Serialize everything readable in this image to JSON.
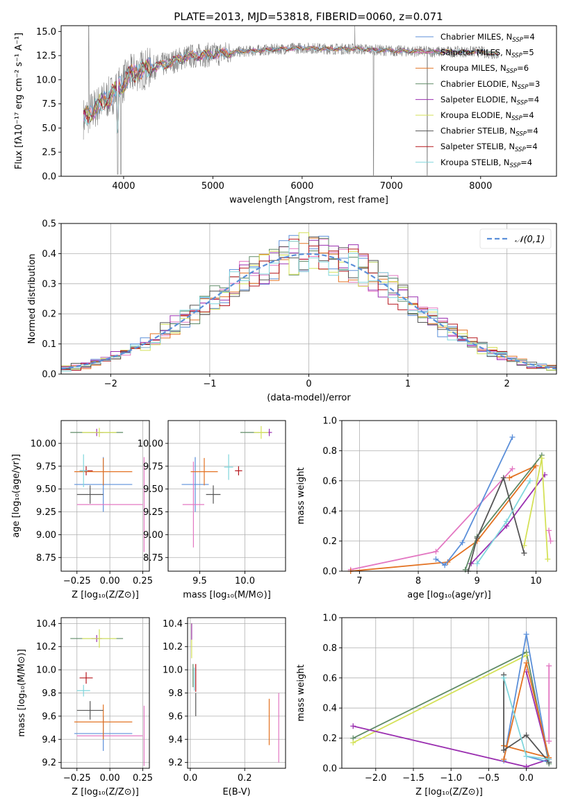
{
  "title": "PLATE=2013, MJD=53818, FIBERID=0060, z=0.071",
  "legend": [
    {
      "label": "Chabrier MILES, N",
      "sub": "SSP",
      "suffix": "=4",
      "color": "#5b8fd9"
    },
    {
      "label": "Salpeter MILES, N",
      "sub": "SSP",
      "suffix": "=5",
      "color": "#e377c2"
    },
    {
      "label": "Kroupa MILES, N",
      "sub": "SSP",
      "suffix": "=6",
      "color": "#e37222"
    },
    {
      "label": "Chabrier ELODIE, N",
      "sub": "SSP",
      "suffix": "=3",
      "color": "#5e8a66"
    },
    {
      "label": "Salpeter ELODIE, N",
      "sub": "SSP",
      "suffix": "=4",
      "color": "#9a2fb0"
    },
    {
      "label": "Kroupa ELODIE, N",
      "sub": "SSP",
      "suffix": "=4",
      "color": "#d4e157"
    },
    {
      "label": "Chabrier STELIB, N",
      "sub": "SSP",
      "suffix": "=4",
      "color": "#555555"
    },
    {
      "label": "Salpeter STELIB, N",
      "sub": "SSP",
      "suffix": "=4",
      "color": "#b5161c"
    },
    {
      "label": "Kroupa STELIB, N",
      "sub": "SSP",
      "suffix": "=4",
      "color": "#7fd6dc"
    }
  ],
  "chart_data": [
    {
      "id": "spectrum",
      "type": "line",
      "xlabel": "wavelength [Angstrom, rest frame]",
      "ylabel": "Flux [fλ10⁻¹⁷ erg cm⁻² s⁻¹ A⁻¹]",
      "xlim": [
        3300,
        8850
      ],
      "ylim": [
        0,
        15.6
      ],
      "xticks": [
        4000,
        5000,
        6000,
        7000,
        8000
      ],
      "yticks": [
        0.0,
        2.5,
        5.0,
        7.5,
        10.0,
        12.5,
        15.0
      ],
      "data_color": "#808080",
      "continuum": {
        "x": [
          3550,
          3700,
          3850,
          3950,
          4050,
          4150,
          4300,
          4500,
          4700,
          5000,
          5300,
          5600,
          6000,
          6300,
          6600,
          7000,
          7500,
          8000,
          8200
        ],
        "y": [
          6.0,
          7.2,
          8.3,
          9.2,
          10.3,
          10.9,
          11.2,
          11.7,
          12.4,
          12.6,
          12.9,
          13.1,
          13.3,
          13.2,
          13.2,
          13.0,
          12.9,
          12.9,
          12.6
        ]
      }
    },
    {
      "id": "residuals",
      "type": "histogram",
      "xlabel": "(data-model)/error",
      "ylabel": "Normed distribution",
      "xlim": [
        -2.5,
        2.5
      ],
      "ylim": [
        0,
        0.5
      ],
      "xticks": [
        -2,
        -1,
        0,
        1,
        2
      ],
      "yticks": [
        0.0,
        0.1,
        0.2,
        0.3,
        0.4,
        0.5
      ],
      "reference": {
        "label": "𝒩(0,1)",
        "mean": 0,
        "sigma": 1,
        "color": "#5b8fd9"
      }
    },
    {
      "id": "age_vs_Z",
      "type": "errorbar",
      "xlabel": "Z [log₁₀(Z/Z⊙)]",
      "ylabel": "age  [log₁₀(age/yr)]",
      "xlim": [
        -0.37,
        0.3
      ],
      "ylim": [
        8.6,
        10.25
      ],
      "xticks": [
        -0.25,
        0.0,
        0.25
      ],
      "yticks": [
        8.75,
        9.0,
        9.25,
        9.5,
        9.75,
        10.0
      ],
      "points": [
        {
          "x": -0.05,
          "xerr": 0.22,
          "y": 9.55,
          "yerr": 0.3,
          "color": "#5b8fd9"
        },
        {
          "x": 0.0,
          "xerr": 0.25,
          "y": 9.33,
          "yerr": 0.0,
          "color": "#e377c2"
        },
        {
          "x": -0.05,
          "xerr": 0.22,
          "y": 9.69,
          "yerr": 0.15,
          "color": "#e37222"
        },
        {
          "x": -0.1,
          "xerr": 0.2,
          "y": 10.12,
          "yerr": 0.0,
          "color": "#5e8a66"
        },
        {
          "x": -0.1,
          "xerr": 0.05,
          "y": 10.12,
          "yerr": 0.04,
          "color": "#9a2fb0"
        },
        {
          "x": -0.08,
          "xerr": 0.13,
          "y": 10.12,
          "yerr": 0.05,
          "color": "#d4e157"
        },
        {
          "x": -0.15,
          "xerr": 0.1,
          "y": 9.44,
          "yerr": 0.1,
          "color": "#555555"
        },
        {
          "x": -0.18,
          "xerr": 0.05,
          "y": 9.7,
          "yerr": 0.05,
          "color": "#b5161c"
        },
        {
          "x": -0.2,
          "xerr": 0.03,
          "y": 9.7,
          "yerr": 0.18,
          "color": "#7fd6dc"
        },
        {
          "x": 0.26,
          "xerr": 0.0,
          "y": 9.33,
          "yerr": 0.52,
          "color": "#e377c2"
        }
      ]
    },
    {
      "id": "age_vs_mass",
      "type": "errorbar",
      "xlabel": "mass [log₁₀(M/M⊙)]",
      "ylabel": "",
      "xlim": [
        9.15,
        10.45
      ],
      "ylim": [
        8.6,
        10.25
      ],
      "xticks": [
        9.5,
        10.0
      ],
      "yticks": [
        8.75,
        9.0,
        9.25,
        9.5,
        9.75,
        10.0
      ],
      "points": [
        {
          "x": 9.45,
          "xerr": 0.15,
          "y": 9.55,
          "yerr": 0.3,
          "color": "#5b8fd9"
        },
        {
          "x": 9.43,
          "xerr": 0.12,
          "y": 9.33,
          "yerr": 0.47,
          "color": "#e377c2"
        },
        {
          "x": 9.55,
          "xerr": 0.15,
          "y": 9.69,
          "yerr": 0.15,
          "color": "#e37222"
        },
        {
          "x": 10.1,
          "xerr": 0.15,
          "y": 10.12,
          "yerr": 0.0,
          "color": "#5e8a66"
        },
        {
          "x": 10.27,
          "xerr": 0.03,
          "y": 10.12,
          "yerr": 0.04,
          "color": "#9a2fb0"
        },
        {
          "x": 10.18,
          "xerr": 0.08,
          "y": 10.12,
          "yerr": 0.07,
          "color": "#d4e157"
        },
        {
          "x": 9.65,
          "xerr": 0.08,
          "y": 9.44,
          "yerr": 0.1,
          "color": "#555555"
        },
        {
          "x": 9.93,
          "xerr": 0.04,
          "y": 9.7,
          "yerr": 0.05,
          "color": "#b5161c"
        },
        {
          "x": 9.82,
          "xerr": 0.05,
          "y": 9.74,
          "yerr": 0.14,
          "color": "#7fd6dc"
        }
      ]
    },
    {
      "id": "weight_vs_age",
      "type": "line",
      "xlabel": "age  [log₁₀(age/yr)]",
      "ylabel": "mass weight",
      "xlim": [
        6.7,
        10.35
      ],
      "ylim": [
        0,
        1
      ],
      "xticks": [
        7,
        8,
        9,
        10
      ],
      "yticks": [
        0.0,
        0.2,
        0.4,
        0.6,
        0.8,
        1.0
      ],
      "series": [
        {
          "color": "#e377c2",
          "x": [
            6.85,
            8.3,
            9.6
          ],
          "y": [
            0.01,
            0.13,
            0.68
          ]
        },
        {
          "color": "#e37222",
          "x": [
            6.85,
            8.5,
            9.0,
            10.0,
            9.55
          ],
          "y": [
            0.0,
            0.06,
            0.2,
            0.7,
            0.62
          ]
        },
        {
          "color": "#5b8fd9",
          "x": [
            8.3,
            8.45,
            8.75,
            9.6
          ],
          "y": [
            0.08,
            0.04,
            0.19,
            0.89
          ]
        },
        {
          "color": "#5e8a66",
          "x": [
            8.8,
            9.0,
            10.1
          ],
          "y": [
            0.01,
            0.23,
            0.77
          ]
        },
        {
          "color": "#9a2fb0",
          "x": [
            8.9,
            9.5,
            10.15
          ],
          "y": [
            0.05,
            0.3,
            0.64
          ]
        },
        {
          "color": "#d4e157",
          "x": [
            9.8,
            10.1,
            10.2
          ],
          "y": [
            0.17,
            0.75,
            0.08
          ]
        },
        {
          "color": "#555555",
          "x": [
            8.85,
            9.0,
            9.45,
            9.8
          ],
          "y": [
            0.0,
            0.22,
            0.62,
            0.12
          ]
        },
        {
          "color": "#7fd6dc",
          "x": [
            9.0,
            9.5,
            9.9
          ],
          "y": [
            0.05,
            0.33,
            0.6
          ]
        },
        {
          "color": "#e377c2",
          "x": [
            10.22,
            10.25
          ],
          "y": [
            0.27,
            0.2
          ]
        }
      ]
    },
    {
      "id": "mass_vs_Z",
      "type": "errorbar",
      "xlabel": "Z [log₁₀(Z/Z⊙)]",
      "ylabel": "mass [log₁₀(M/M⊙)]",
      "xlim": [
        -0.37,
        0.3
      ],
      "ylim": [
        9.15,
        10.45
      ],
      "xticks": [
        -0.25,
        0.0,
        0.25
      ],
      "yticks": [
        9.2,
        9.4,
        9.6,
        9.8,
        10.0,
        10.2,
        10.4
      ],
      "points": [
        {
          "x": -0.05,
          "xerr": 0.22,
          "y": 9.45,
          "yerr": 0.15,
          "color": "#5b8fd9"
        },
        {
          "x": 0.0,
          "xerr": 0.25,
          "y": 9.43,
          "yerr": 0.0,
          "color": "#e377c2"
        },
        {
          "x": -0.05,
          "xerr": 0.22,
          "y": 9.55,
          "yerr": 0.15,
          "color": "#e37222"
        },
        {
          "x": -0.1,
          "xerr": 0.2,
          "y": 10.27,
          "yerr": 0.0,
          "color": "#5e8a66"
        },
        {
          "x": -0.1,
          "xerr": 0.04,
          "y": 10.27,
          "yerr": 0.03,
          "color": "#9a2fb0"
        },
        {
          "x": -0.08,
          "xerr": 0.13,
          "y": 10.27,
          "yerr": 0.08,
          "color": "#d4e157"
        },
        {
          "x": -0.15,
          "xerr": 0.1,
          "y": 9.65,
          "yerr": 0.08,
          "color": "#555555"
        },
        {
          "x": -0.18,
          "xerr": 0.05,
          "y": 9.93,
          "yerr": 0.05,
          "color": "#b5161c"
        },
        {
          "x": -0.2,
          "xerr": 0.05,
          "y": 9.82,
          "yerr": 0.05,
          "color": "#7fd6dc"
        },
        {
          "x": 0.26,
          "xerr": 0.0,
          "y": 9.43,
          "yerr": 0.26,
          "color": "#e377c2"
        }
      ]
    },
    {
      "id": "mass_vs_EBV",
      "type": "errorbar",
      "xlabel": "E(B-V)",
      "ylabel": "",
      "xlim": [
        -0.01,
        0.35
      ],
      "ylim": [
        9.15,
        10.45
      ],
      "xticks": [
        0.0,
        0.2
      ],
      "yticks": [
        9.2,
        9.4,
        9.6,
        9.8,
        10.0,
        10.2,
        10.4
      ],
      "points": [
        {
          "x": 0.005,
          "xerr": 0,
          "y": 10.25,
          "yerr": 0.15,
          "color": "#d4e157"
        },
        {
          "x": 0.005,
          "xerr": 0,
          "y": 10.33,
          "yerr": 0.07,
          "color": "#9a2fb0"
        },
        {
          "x": 0.01,
          "xerr": 0,
          "y": 9.95,
          "yerr": 0.1,
          "color": "#5e8a66"
        },
        {
          "x": 0.015,
          "xerr": 0,
          "y": 9.92,
          "yerr": 0.1,
          "color": "#7fd6dc"
        },
        {
          "x": 0.02,
          "xerr": 0,
          "y": 9.93,
          "yerr": 0.12,
          "color": "#b5161c"
        },
        {
          "x": 0.02,
          "xerr": 0,
          "y": 9.7,
          "yerr": 0.1,
          "color": "#555555"
        },
        {
          "x": 0.29,
          "xerr": 0,
          "y": 9.55,
          "yerr": 0.2,
          "color": "#e37222"
        },
        {
          "x": 0.325,
          "xerr": 0,
          "y": 9.5,
          "yerr": 0.3,
          "color": "#e377c2"
        }
      ]
    },
    {
      "id": "weight_vs_Z",
      "type": "line",
      "xlabel": "Z [log₁₀(Z/Z⊙)]",
      "ylabel": "mass weight",
      "xlim": [
        -2.45,
        0.4
      ],
      "ylim": [
        0,
        1
      ],
      "xticks": [
        -2.0,
        -1.5,
        -1.0,
        -0.5,
        0.0
      ],
      "yticks": [
        0.0,
        0.2,
        0.4,
        0.6,
        0.8,
        1.0
      ],
      "series": [
        {
          "color": "#5e8a66",
          "x": [
            -2.3,
            0.0,
            0.3
          ],
          "y": [
            0.2,
            0.77,
            0.03
          ]
        },
        {
          "color": "#d4e157",
          "x": [
            -2.3,
            0.0
          ],
          "y": [
            0.17,
            0.75
          ]
        },
        {
          "color": "#9a2fb0",
          "x": [
            -2.3,
            -0.0,
            0.3,
            0.0
          ],
          "y": [
            0.28,
            0.01,
            0.06,
            0.64
          ]
        },
        {
          "color": "#5b8fd9",
          "x": [
            -0.3,
            0.0,
            0.3,
            0.0
          ],
          "y": [
            0.05,
            0.89,
            0.04,
            0.08
          ]
        },
        {
          "color": "#e37222",
          "x": [
            -0.3,
            0.0,
            0.3,
            -0.3
          ],
          "y": [
            0.06,
            0.7,
            0.07,
            0.15
          ]
        },
        {
          "color": "#555555",
          "x": [
            -0.3,
            -0.3,
            0.0,
            0.3
          ],
          "y": [
            0.62,
            0.12,
            0.22,
            0.04
          ]
        },
        {
          "color": "#7fd6dc",
          "x": [
            -0.3,
            0.0,
            0.3
          ],
          "y": [
            0.6,
            0.08,
            0.06
          ]
        },
        {
          "color": "#e377c2",
          "x": [
            0.3,
            0.3
          ],
          "y": [
            0.68,
            0.18
          ]
        }
      ]
    }
  ]
}
